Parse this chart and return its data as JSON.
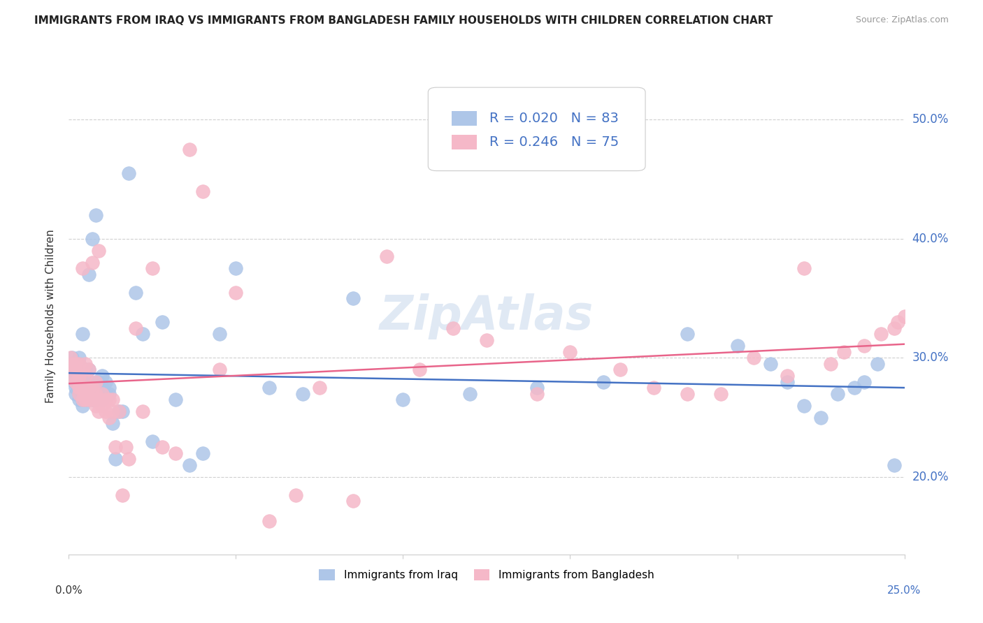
{
  "title": "IMMIGRANTS FROM IRAQ VS IMMIGRANTS FROM BANGLADESH FAMILY HOUSEHOLDS WITH CHILDREN CORRELATION CHART",
  "source": "Source: ZipAtlas.com",
  "ylabel": "Family Households with Children",
  "ytick_labels": [
    "20.0%",
    "30.0%",
    "40.0%",
    "50.0%"
  ],
  "ytick_values": [
    0.2,
    0.3,
    0.4,
    0.5
  ],
  "xlim": [
    0.0,
    0.25
  ],
  "ylim": [
    0.135,
    0.535
  ],
  "iraq_R": 0.02,
  "iraq_N": 83,
  "bangladesh_R": 0.246,
  "bangladesh_N": 75,
  "iraq_color": "#aec6e8",
  "bangladesh_color": "#f5b8c8",
  "iraq_line_color": "#4472c4",
  "bangladesh_line_color": "#e8648a",
  "iraq_x": [
    0.0005,
    0.001,
    0.001,
    0.001,
    0.0015,
    0.0015,
    0.002,
    0.002,
    0.002,
    0.002,
    0.003,
    0.003,
    0.003,
    0.003,
    0.003,
    0.003,
    0.003,
    0.004,
    0.004,
    0.004,
    0.004,
    0.004,
    0.004,
    0.005,
    0.005,
    0.005,
    0.005,
    0.005,
    0.006,
    0.006,
    0.006,
    0.006,
    0.006,
    0.007,
    0.007,
    0.007,
    0.007,
    0.008,
    0.008,
    0.008,
    0.008,
    0.009,
    0.009,
    0.009,
    0.01,
    0.01,
    0.01,
    0.011,
    0.011,
    0.012,
    0.012,
    0.013,
    0.014,
    0.015,
    0.016,
    0.018,
    0.02,
    0.022,
    0.025,
    0.028,
    0.032,
    0.036,
    0.04,
    0.045,
    0.05,
    0.06,
    0.07,
    0.085,
    0.1,
    0.12,
    0.14,
    0.16,
    0.185,
    0.2,
    0.21,
    0.215,
    0.22,
    0.225,
    0.23,
    0.235,
    0.238,
    0.242,
    0.247
  ],
  "iraq_y": [
    0.295,
    0.3,
    0.285,
    0.29,
    0.28,
    0.295,
    0.27,
    0.275,
    0.285,
    0.29,
    0.265,
    0.27,
    0.275,
    0.28,
    0.29,
    0.295,
    0.3,
    0.26,
    0.265,
    0.27,
    0.28,
    0.285,
    0.32,
    0.265,
    0.27,
    0.275,
    0.285,
    0.29,
    0.265,
    0.275,
    0.28,
    0.29,
    0.37,
    0.265,
    0.27,
    0.275,
    0.4,
    0.265,
    0.27,
    0.28,
    0.42,
    0.27,
    0.275,
    0.28,
    0.265,
    0.275,
    0.285,
    0.27,
    0.28,
    0.27,
    0.275,
    0.245,
    0.215,
    0.255,
    0.255,
    0.455,
    0.355,
    0.32,
    0.23,
    0.33,
    0.265,
    0.21,
    0.22,
    0.32,
    0.375,
    0.275,
    0.27,
    0.35,
    0.265,
    0.27,
    0.275,
    0.28,
    0.32,
    0.31,
    0.295,
    0.28,
    0.26,
    0.25,
    0.27,
    0.275,
    0.28,
    0.295,
    0.21
  ],
  "bangladesh_x": [
    0.0005,
    0.001,
    0.001,
    0.0015,
    0.002,
    0.002,
    0.003,
    0.003,
    0.003,
    0.003,
    0.004,
    0.004,
    0.004,
    0.005,
    0.005,
    0.005,
    0.005,
    0.006,
    0.006,
    0.006,
    0.007,
    0.007,
    0.007,
    0.008,
    0.008,
    0.008,
    0.009,
    0.009,
    0.009,
    0.01,
    0.01,
    0.011,
    0.011,
    0.012,
    0.012,
    0.013,
    0.013,
    0.014,
    0.015,
    0.016,
    0.017,
    0.018,
    0.02,
    0.022,
    0.025,
    0.028,
    0.032,
    0.036,
    0.04,
    0.045,
    0.05,
    0.06,
    0.068,
    0.075,
    0.085,
    0.095,
    0.105,
    0.115,
    0.125,
    0.14,
    0.15,
    0.165,
    0.175,
    0.185,
    0.195,
    0.205,
    0.215,
    0.22,
    0.228,
    0.232,
    0.238,
    0.243,
    0.247,
    0.248,
    0.25
  ],
  "bangladesh_y": [
    0.3,
    0.295,
    0.285,
    0.29,
    0.28,
    0.295,
    0.27,
    0.275,
    0.285,
    0.295,
    0.265,
    0.275,
    0.375,
    0.265,
    0.275,
    0.285,
    0.295,
    0.265,
    0.275,
    0.29,
    0.265,
    0.275,
    0.38,
    0.26,
    0.27,
    0.28,
    0.255,
    0.265,
    0.39,
    0.26,
    0.27,
    0.255,
    0.265,
    0.25,
    0.265,
    0.255,
    0.265,
    0.225,
    0.255,
    0.185,
    0.225,
    0.215,
    0.325,
    0.255,
    0.375,
    0.225,
    0.22,
    0.475,
    0.44,
    0.29,
    0.355,
    0.163,
    0.185,
    0.275,
    0.18,
    0.385,
    0.29,
    0.325,
    0.315,
    0.27,
    0.305,
    0.29,
    0.275,
    0.27,
    0.27,
    0.3,
    0.285,
    0.375,
    0.295,
    0.305,
    0.31,
    0.32,
    0.325,
    0.33,
    0.335
  ]
}
